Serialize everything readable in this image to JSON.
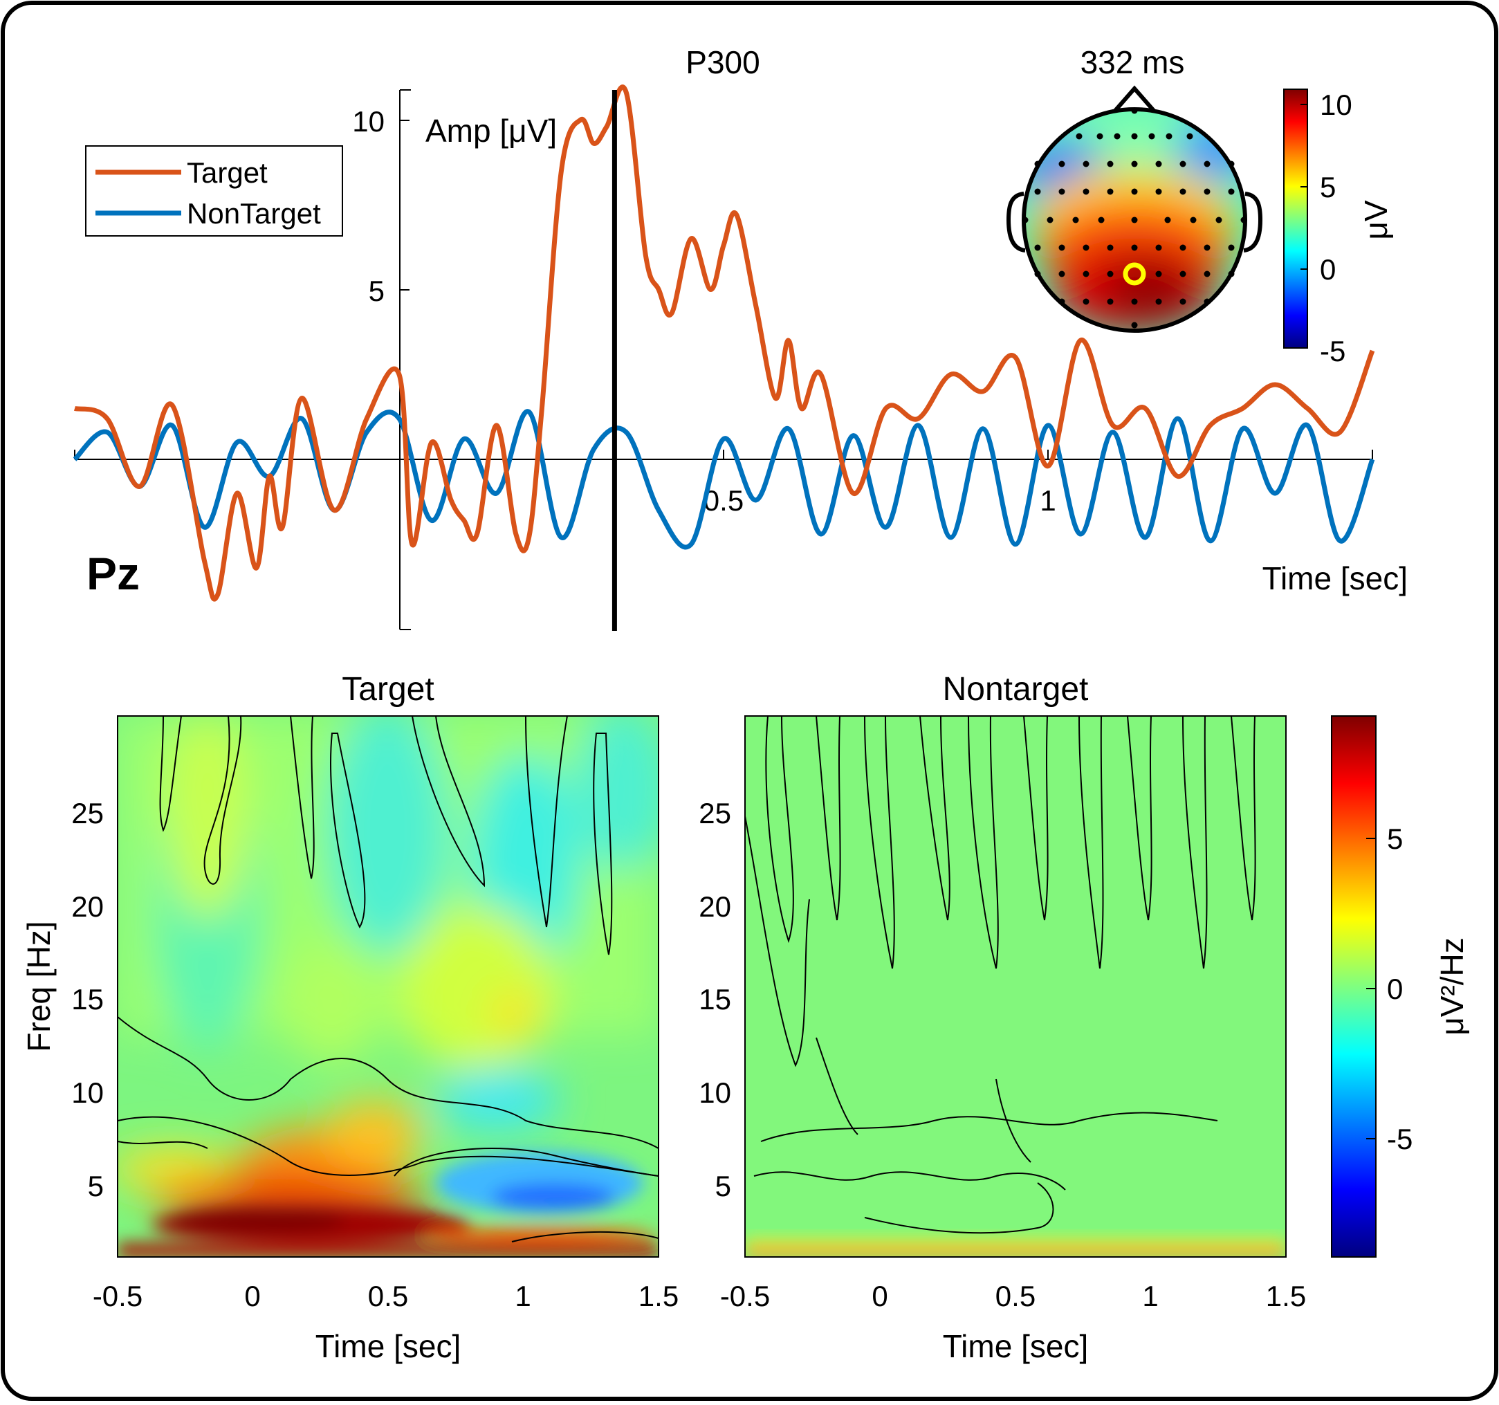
{
  "erp_panel": {
    "channel": "Pz",
    "p300_label": "P300",
    "ylabel": "Amp [μV]",
    "xlabel": "Time [sec]",
    "legend": [
      "Target",
      "NonTarget"
    ],
    "topo_title": "332 ms",
    "topo_cbar_label": "μV",
    "topo_cbar_ticks": [
      "10",
      "5",
      "0",
      "-5"
    ],
    "y_ticks": [
      "10",
      "5"
    ],
    "x_ticks": [
      "0.5",
      "1"
    ],
    "colors": {
      "target": "#D95319",
      "nontarget": "#0072BD"
    }
  },
  "tf_panels": {
    "titles": [
      "Target",
      "Nontarget"
    ],
    "ylabel": "Freq [Hz]",
    "xlabel": "Time [sec]",
    "y_ticks": [
      "25",
      "20",
      "15",
      "10",
      "5"
    ],
    "x_ticks": [
      "-0.5",
      "0",
      "0.5",
      "1",
      "1.5"
    ],
    "cbar_label": "μV²/Hz",
    "cbar_ticks": [
      "5",
      "0",
      "-5"
    ]
  },
  "chart_data": [
    {
      "type": "line",
      "title": "P300",
      "xlabel": "Time [sec]",
      "ylabel": "Amp [μV]",
      "xlim": [
        -0.5,
        1.5
      ],
      "ylim": [
        -5,
        11
      ],
      "marker_x": 0.332,
      "legend_placement": "top-left",
      "series": [
        {
          "name": "Target",
          "x": [
            -0.5,
            -0.45,
            -0.4,
            -0.35,
            -0.3,
            -0.28,
            -0.25,
            -0.22,
            -0.2,
            -0.18,
            -0.15,
            -0.1,
            -0.05,
            0.0,
            0.02,
            0.05,
            0.08,
            0.1,
            0.12,
            0.15,
            0.18,
            0.2,
            0.22,
            0.25,
            0.28,
            0.3,
            0.32,
            0.35,
            0.38,
            0.4,
            0.42,
            0.45,
            0.48,
            0.5,
            0.52,
            0.55,
            0.58,
            0.6,
            0.62,
            0.65,
            0.7,
            0.75,
            0.8,
            0.85,
            0.9,
            0.95,
            1.0,
            1.05,
            1.1,
            1.15,
            1.2,
            1.25,
            1.3,
            1.35,
            1.4,
            1.45,
            1.5
          ],
          "values": [
            1.5,
            1.2,
            -0.8,
            1.6,
            -3.0,
            -4.0,
            -1.0,
            -3.2,
            -0.5,
            -2.0,
            1.8,
            -1.5,
            1.2,
            2.5,
            -2.5,
            0.5,
            -1.2,
            -1.8,
            -2.2,
            1.0,
            -2.2,
            -2.3,
            1.5,
            8.5,
            10.0,
            9.3,
            9.8,
            10.8,
            6.0,
            5.0,
            4.3,
            6.5,
            5.0,
            6.3,
            7.2,
            4.5,
            1.8,
            3.5,
            1.5,
            2.5,
            -1.0,
            1.5,
            1.2,
            2.5,
            2.0,
            3.0,
            -0.2,
            3.5,
            1.0,
            1.5,
            -0.5,
            1.0,
            1.5,
            2.2,
            1.5,
            0.8,
            3.2
          ]
        },
        {
          "name": "NonTarget",
          "x": [
            -0.5,
            -0.45,
            -0.4,
            -0.35,
            -0.3,
            -0.25,
            -0.2,
            -0.15,
            -0.1,
            -0.05,
            0.0,
            0.05,
            0.1,
            0.15,
            0.2,
            0.25,
            0.3,
            0.35,
            0.4,
            0.45,
            0.5,
            0.55,
            0.6,
            0.65,
            0.7,
            0.75,
            0.8,
            0.85,
            0.9,
            0.95,
            1.0,
            1.05,
            1.1,
            1.15,
            1.2,
            1.25,
            1.3,
            1.35,
            1.4,
            1.45,
            1.5
          ],
          "values": [
            0.0,
            0.8,
            -0.8,
            1.0,
            -2.0,
            0.5,
            -0.5,
            1.2,
            -1.5,
            0.8,
            1.2,
            -1.8,
            0.6,
            -1.0,
            1.4,
            -2.3,
            0.3,
            0.8,
            -1.5,
            -2.5,
            0.6,
            -1.2,
            0.9,
            -2.2,
            0.7,
            -2.0,
            1.0,
            -2.3,
            0.9,
            -2.5,
            1.0,
            -2.2,
            0.8,
            -2.3,
            1.2,
            -2.4,
            0.9,
            -1.0,
            1.0,
            -2.4,
            0.0
          ]
        }
      ]
    },
    {
      "type": "heatmap",
      "title": "Target",
      "xlabel": "Time [sec]",
      "ylabel": "Freq [Hz]",
      "xlim": [
        -0.5,
        1.5
      ],
      "ylim": [
        1,
        30
      ],
      "clim": [
        -9,
        9
      ],
      "colorbar_label": "μV²/Hz"
    },
    {
      "type": "heatmap",
      "title": "Nontarget",
      "xlabel": "Time [sec]",
      "ylabel": "Freq [Hz]",
      "xlim": [
        -0.5,
        1.5
      ],
      "ylim": [
        1,
        30
      ],
      "clim": [
        -9,
        9
      ],
      "colorbar_label": "μV²/Hz"
    }
  ]
}
